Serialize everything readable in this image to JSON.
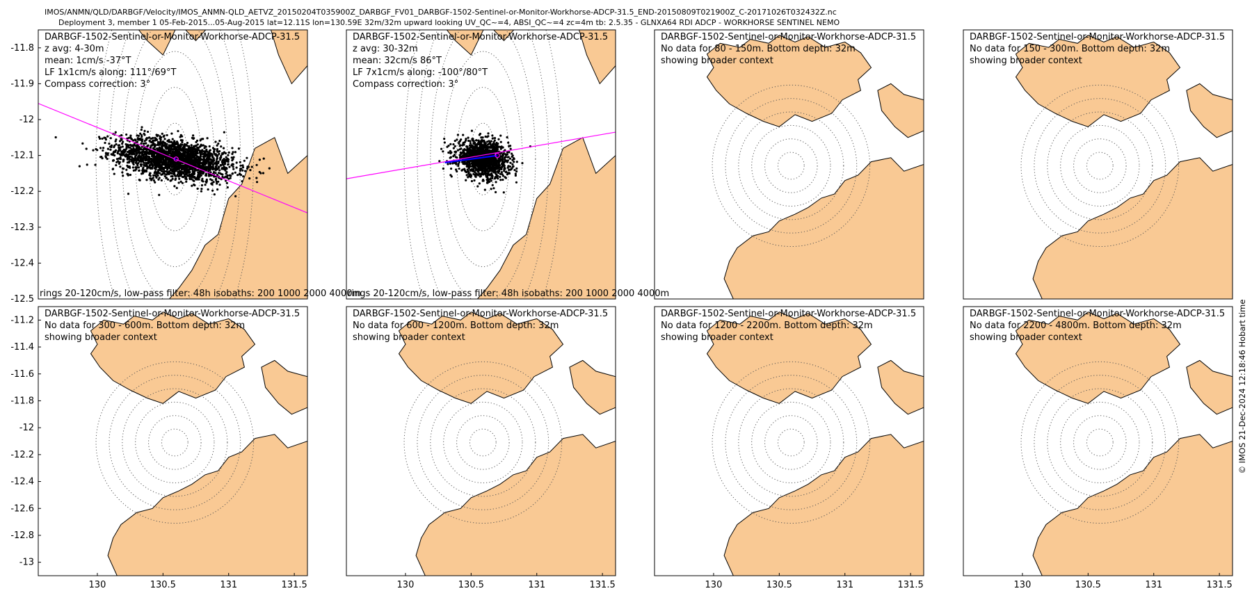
{
  "header": {
    "title": "IMOS/ANMN/QLD/DARBGF/Velocity/IMOS_ANMN-QLD_AETVZ_20150204T035900Z_DARBGF_FV01_DARBGF-1502-Sentinel-or-Monitor-Workhorse-ADCP-31.5_END-20150809T021900Z_C-20171026T032432Z.nc",
    "subtitle": "Deployment 3, member 1 05-Feb-2015...05-Aug-2015 lat=12.11S lon=130.59E 32m/32m upward looking UV_QC~=4, ABSI_QC~=4 zc=4m tb: 2.5.35 - GLNXA64 RDI ADCP - WORKHORSE SENTINEL NEMO"
  },
  "copyright": "© IMOS 21-Dec-2024 12:18:46 Hobart time",
  "colors": {
    "land": "#f9c994",
    "coast": "#000000",
    "rings": "#555555",
    "axis_line": "magenta",
    "mean_vector": "blue",
    "points": "#000000"
  },
  "chart_data": [
    {
      "type": "scatter",
      "panel": "row1-col1",
      "xlim": [
        129.55,
        131.6
      ],
      "ylim": [
        -12.5,
        -11.75
      ],
      "xticks": [],
      "yticks": [
        -11.8,
        -11.9,
        -12,
        -12.1,
        -12.2,
        -12.3,
        -12.4,
        -12.5
      ],
      "ytick_labels": [
        "-11.8",
        "-11.9",
        "-12",
        "-12.1",
        "-12.2",
        "-12.3",
        "-12.4",
        "-12.5"
      ],
      "center": [
        130.59,
        -12.11
      ],
      "ring_radii_deg": [
        0.1,
        0.2,
        0.3,
        0.4,
        0.5,
        0.6
      ],
      "cloud": {
        "semi_major": 0.5,
        "semi_minor": 0.05,
        "tilt_deg": -3,
        "n": 2200
      },
      "principal_axis": {
        "from": [
          129.55,
          -11.955
        ],
        "to": [
          131.6,
          -12.26
        ]
      },
      "mean_vector": [
        [
          130.59,
          -12.11
        ],
        [
          130.6,
          -12.11
        ]
      ],
      "annotations": [
        "DARBGF-1502-Sentinel-or-Monitor-Workhorse-ADCP-31.5",
        "z avg: 4-30m",
        "mean: 1cm/s -37°T",
        "LF 1x1cm/s along: 111°/69°T",
        "Compass correction: 3°"
      ],
      "footer": "rings 20-120cm/s, low-pass filter: 48h isobaths: 200 1000 2000 4000m"
    },
    {
      "type": "scatter",
      "panel": "row1-col2",
      "xlim": [
        129.55,
        131.6
      ],
      "ylim": [
        -12.5,
        -11.75
      ],
      "xticks": [],
      "yticks": [],
      "center": [
        130.59,
        -12.11
      ],
      "ring_radii_deg": [
        0.1,
        0.2,
        0.3,
        0.4,
        0.5,
        0.6
      ],
      "cloud": {
        "semi_major": 0.22,
        "semi_minor": 0.045,
        "tilt_deg": -3,
        "n": 1400
      },
      "principal_axis": {
        "from": [
          129.55,
          -12.165
        ],
        "to": [
          131.6,
          -12.035
        ]
      },
      "mean_vector": [
        [
          130.3,
          -12.12
        ],
        [
          130.7,
          -12.1
        ]
      ],
      "annotations": [
        "DARBGF-1502-Sentinel-or-Monitor-Workhorse-ADCP-31.5",
        "z avg: 30-32m",
        "mean: 32cm/s 86°T",
        "LF 7x1cm/s along: -100°/80°T",
        "Compass correction: 3°"
      ],
      "footer": "rings 20-120cm/s, low-pass filter: 48h isobaths: 200 1000 2000 4000m"
    },
    {
      "type": "map",
      "panel": "row1-col3",
      "xlim": [
        129.55,
        131.6
      ],
      "ylim": [
        -13.1,
        -11.1
      ],
      "xticks": [],
      "yticks": [],
      "center": [
        130.59,
        -12.11
      ],
      "ring_radii_deg": [
        0.1,
        0.2,
        0.3,
        0.4,
        0.5,
        0.6
      ],
      "annotations": [
        "DARBGF-1502-Sentinel-or-Monitor-Workhorse-ADCP-31.5",
        "No data for 80 - 150m. Bottom depth: 32m",
        "showing broader context"
      ]
    },
    {
      "type": "map",
      "panel": "row1-col4",
      "xlim": [
        129.55,
        131.6
      ],
      "ylim": [
        -13.1,
        -11.1
      ],
      "xticks": [],
      "yticks": [],
      "center": [
        130.59,
        -12.11
      ],
      "ring_radii_deg": [
        0.1,
        0.2,
        0.3,
        0.4,
        0.5,
        0.6
      ],
      "annotations": [
        "DARBGF-1502-Sentinel-or-Monitor-Workhorse-ADCP-31.5",
        "No data for 150 - 300m. Bottom depth: 32m",
        "showing broader context"
      ]
    },
    {
      "type": "map",
      "panel": "row2-col1",
      "xlim": [
        129.55,
        131.6
      ],
      "ylim": [
        -13.1,
        -11.1
      ],
      "xticks": [
        130,
        130.5,
        131,
        131.5
      ],
      "xtick_labels": [
        "130",
        "130.5",
        "131",
        "131.5"
      ],
      "yticks": [
        -11.2,
        -11.4,
        -11.6,
        -11.8,
        -12,
        -12.2,
        -12.4,
        -12.6,
        -12.8,
        -13
      ],
      "ytick_labels": [
        "-11.2",
        "-11.4",
        "-11.6",
        "-11.8",
        "-12",
        "-12.2",
        "-12.4",
        "-12.6",
        "-12.8",
        "-13"
      ],
      "center": [
        130.59,
        -12.11
      ],
      "ring_radii_deg": [
        0.1,
        0.2,
        0.3,
        0.4,
        0.5,
        0.6
      ],
      "annotations": [
        "DARBGF-1502-Sentinel-or-Monitor-Workhorse-ADCP-31.5",
        "No data for 300 - 600m. Bottom depth: 32m",
        "showing broader context"
      ]
    },
    {
      "type": "map",
      "panel": "row2-col2",
      "xlim": [
        129.55,
        131.6
      ],
      "ylim": [
        -13.1,
        -11.1
      ],
      "xticks": [
        130,
        130.5,
        131,
        131.5
      ],
      "xtick_labels": [
        "130",
        "130.5",
        "131",
        "131.5"
      ],
      "yticks": [],
      "center": [
        130.59,
        -12.11
      ],
      "ring_radii_deg": [
        0.1,
        0.2,
        0.3,
        0.4,
        0.5,
        0.6
      ],
      "annotations": [
        "DARBGF-1502-Sentinel-or-Monitor-Workhorse-ADCP-31.5",
        "No data for 600 - 1200m. Bottom depth: 32m",
        "showing broader context"
      ]
    },
    {
      "type": "map",
      "panel": "row2-col3",
      "xlim": [
        129.55,
        131.6
      ],
      "ylim": [
        -13.1,
        -11.1
      ],
      "xticks": [
        130,
        130.5,
        131,
        131.5
      ],
      "xtick_labels": [
        "130",
        "130.5",
        "131",
        "131.5"
      ],
      "yticks": [],
      "center": [
        130.59,
        -12.11
      ],
      "ring_radii_deg": [
        0.1,
        0.2,
        0.3,
        0.4,
        0.5,
        0.6
      ],
      "annotations": [
        "DARBGF-1502-Sentinel-or-Monitor-Workhorse-ADCP-31.5",
        "No data for 1200 - 2200m. Bottom depth: 32m",
        "showing broader context"
      ]
    },
    {
      "type": "map",
      "panel": "row2-col4",
      "xlim": [
        129.55,
        131.6
      ],
      "ylim": [
        -13.1,
        -11.1
      ],
      "xticks": [
        130,
        130.5,
        131,
        131.5
      ],
      "xtick_labels": [
        "130",
        "130.5",
        "131",
        "131.5"
      ],
      "yticks": [],
      "center": [
        130.59,
        -12.11
      ],
      "ring_radii_deg": [
        0.1,
        0.2,
        0.3,
        0.4,
        0.5,
        0.6
      ],
      "annotations": [
        "DARBGF-1502-Sentinel-or-Monitor-Workhorse-ADCP-31.5",
        "No data for 2200 - 4800m. Bottom depth: 32m",
        "showing broader context"
      ]
    }
  ]
}
